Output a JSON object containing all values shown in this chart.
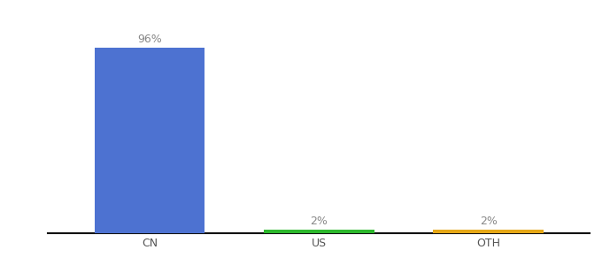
{
  "categories": [
    "CN",
    "US",
    "OTH"
  ],
  "values": [
    96,
    2,
    2
  ],
  "bar_colors": [
    "#4d72d1",
    "#2db82d",
    "#e6a817"
  ],
  "labels": [
    "96%",
    "2%",
    "2%"
  ],
  "ylim": [
    0,
    104
  ],
  "background_color": "#ffffff",
  "label_fontsize": 9,
  "tick_fontsize": 9,
  "bar_width": 0.65,
  "x_positions": [
    0,
    1,
    1.6
  ],
  "xlim": [
    -0.5,
    2.2
  ]
}
